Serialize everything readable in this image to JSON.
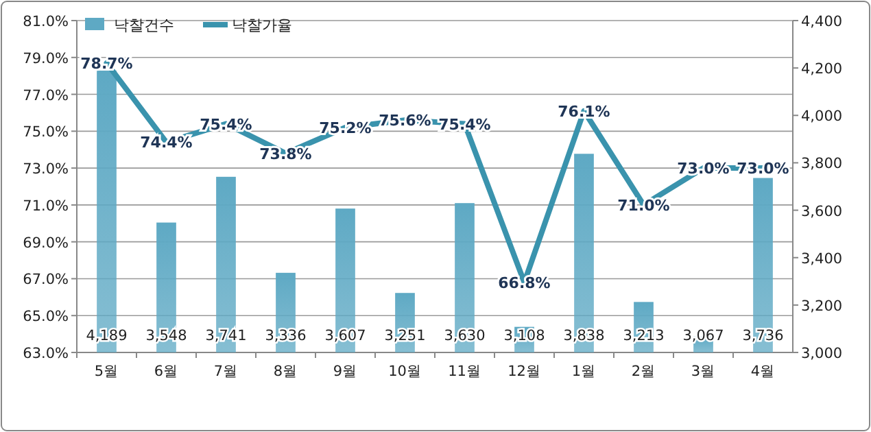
{
  "chart_data": {
    "type": "bar",
    "categories": [
      "5월",
      "6월",
      "7월",
      "8월",
      "9월",
      "10월",
      "11월",
      "12월",
      "1월",
      "2월",
      "3월",
      "4월"
    ],
    "series": [
      {
        "name": "낙찰건수",
        "axis": "y2",
        "color": "#5ea9c4",
        "values": [
          4189,
          3548,
          3741,
          3336,
          3607,
          3251,
          3630,
          3108,
          3838,
          3213,
          3067,
          3736
        ],
        "value_labels": [
          "4,189",
          "3,548",
          "3,741",
          "3,336",
          "3,607",
          "3,251",
          "3,630",
          "3,108",
          "3,838",
          "3,213",
          "3,067",
          "3,736"
        ]
      },
      {
        "name": "낙찰가율",
        "type": "line",
        "axis": "y",
        "color": "#3a93ad",
        "values": [
          78.7,
          74.4,
          75.4,
          73.8,
          75.2,
          75.6,
          75.4,
          66.8,
          76.1,
          71.0,
          73.0,
          73.0
        ],
        "value_labels": [
          "78.7%",
          "74.4%",
          "75.4%",
          "73.8%",
          "75.2%",
          "75.6%",
          "75.4%",
          "66.8%",
          "76.1%",
          "71.0%",
          "73.0%",
          "73.0%"
        ]
      }
    ],
    "ylim": [
      63,
      81
    ],
    "yticks": [
      {
        "value": 63,
        "label": "63.0%"
      },
      {
        "value": 65,
        "label": "65.0%"
      },
      {
        "value": 67,
        "label": "67.0%"
      },
      {
        "value": 69,
        "label": "69.0%"
      },
      {
        "value": 71,
        "label": "71.0%"
      },
      {
        "value": 73,
        "label": "73.0%"
      },
      {
        "value": 75,
        "label": "75.0%"
      },
      {
        "value": 77,
        "label": "77.0%"
      },
      {
        "value": 79,
        "label": "79.0%"
      },
      {
        "value": 81,
        "label": "81.0%"
      }
    ],
    "y2lim": [
      3000,
      4400
    ],
    "y2ticks": [
      {
        "value": 3000,
        "label": "3,000"
      },
      {
        "value": 3200,
        "label": "3,200"
      },
      {
        "value": 3400,
        "label": "3,400"
      },
      {
        "value": 3600,
        "label": "3,600"
      },
      {
        "value": 3800,
        "label": "3,800"
      },
      {
        "value": 4000,
        "label": "4,000"
      },
      {
        "value": 4200,
        "label": "4,200"
      },
      {
        "value": 4400,
        "label": "4,400"
      }
    ],
    "grid": "y",
    "legend": "top left",
    "marker": "none"
  }
}
